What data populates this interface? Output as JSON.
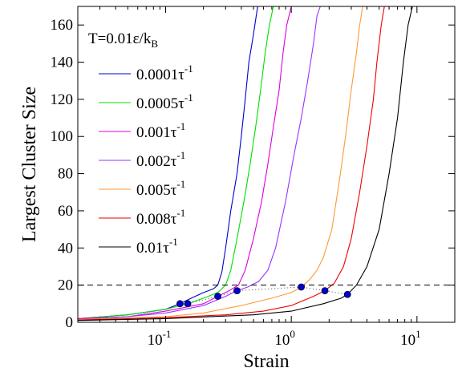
{
  "chart_data": {
    "type": "line",
    "xlabel": "Strain",
    "ylabel": "Largest Cluster Size",
    "xscale": "log",
    "xlim": [
      0.02,
      20
    ],
    "ylim": [
      0,
      170
    ],
    "x_ticks": [
      {
        "value": 0.1,
        "base": "10",
        "exp": "-1"
      },
      {
        "value": 1,
        "base": "10",
        "exp": "0"
      },
      {
        "value": 10,
        "base": "10",
        "exp": "1"
      }
    ],
    "y_ticks": [
      0,
      20,
      40,
      60,
      80,
      100,
      120,
      140,
      160
    ],
    "legend_title": {
      "main": "T=0.01ε/k",
      "sub": "B"
    },
    "legend_position": "top-left",
    "reference_line": {
      "y": 20,
      "style": "dashed"
    },
    "series": [
      {
        "name": "0.0001τ",
        "label_base": "0.0001τ",
        "label_exp": "-1",
        "color": "#0000cc",
        "points": [
          [
            0.02,
            2
          ],
          [
            0.05,
            4
          ],
          [
            0.1,
            7
          ],
          [
            0.13,
            10
          ],
          [
            0.16,
            13
          ],
          [
            0.2,
            16
          ],
          [
            0.24,
            18
          ],
          [
            0.26,
            20
          ],
          [
            0.28,
            27
          ],
          [
            0.3,
            40
          ],
          [
            0.33,
            60
          ],
          [
            0.37,
            80
          ],
          [
            0.4,
            100
          ],
          [
            0.43,
            120
          ],
          [
            0.46,
            140
          ],
          [
            0.5,
            155
          ],
          [
            0.54,
            170
          ]
        ],
        "marker": [
          0.13,
          10
        ]
      },
      {
        "name": "0.0005τ",
        "label_base": "0.0005τ",
        "label_exp": "-1",
        "color": "#00dd00",
        "points": [
          [
            0.02,
            2
          ],
          [
            0.05,
            4
          ],
          [
            0.1,
            7
          ],
          [
            0.15,
            10
          ],
          [
            0.2,
            13
          ],
          [
            0.26,
            16
          ],
          [
            0.3,
            20
          ],
          [
            0.33,
            28
          ],
          [
            0.37,
            45
          ],
          [
            0.42,
            65
          ],
          [
            0.47,
            85
          ],
          [
            0.52,
            105
          ],
          [
            0.57,
            125
          ],
          [
            0.62,
            145
          ],
          [
            0.67,
            160
          ],
          [
            0.72,
            170
          ]
        ],
        "marker": [
          0.15,
          10
        ]
      },
      {
        "name": "0.001τ",
        "label_base": "0.001τ",
        "label_exp": "-1",
        "color": "#dd00dd",
        "points": [
          [
            0.02,
            2
          ],
          [
            0.05,
            3
          ],
          [
            0.1,
            6
          ],
          [
            0.2,
            10
          ],
          [
            0.26,
            14
          ],
          [
            0.32,
            17
          ],
          [
            0.38,
            20
          ],
          [
            0.43,
            28
          ],
          [
            0.5,
            45
          ],
          [
            0.58,
            65
          ],
          [
            0.65,
            85
          ],
          [
            0.72,
            105
          ],
          [
            0.8,
            125
          ],
          [
            0.86,
            145
          ],
          [
            0.92,
            160
          ],
          [
            1.0,
            170
          ]
        ],
        "marker": [
          0.26,
          14
        ]
      },
      {
        "name": "0.002τ",
        "label_base": "0.002τ",
        "label_exp": "-1",
        "color": "#9933ff",
        "points": [
          [
            0.02,
            1.5
          ],
          [
            0.05,
            3
          ],
          [
            0.1,
            5
          ],
          [
            0.2,
            9
          ],
          [
            0.3,
            14
          ],
          [
            0.37,
            17
          ],
          [
            0.45,
            19
          ],
          [
            0.55,
            22
          ],
          [
            0.65,
            28
          ],
          [
            0.75,
            40
          ],
          [
            0.9,
            65
          ],
          [
            1.05,
            90
          ],
          [
            1.2,
            110
          ],
          [
            1.35,
            130
          ],
          [
            1.5,
            150
          ],
          [
            1.6,
            165
          ],
          [
            1.7,
            170
          ]
        ],
        "marker": [
          0.37,
          17
        ]
      },
      {
        "name": "0.005τ",
        "label_base": "0.005τ",
        "label_exp": "-1",
        "color": "#ff9933",
        "points": [
          [
            0.02,
            1.5
          ],
          [
            0.1,
            3
          ],
          [
            0.2,
            5
          ],
          [
            0.4,
            9
          ],
          [
            0.7,
            13
          ],
          [
            1.0,
            16
          ],
          [
            1.2,
            19
          ],
          [
            1.4,
            23
          ],
          [
            1.6,
            28
          ],
          [
            1.8,
            35
          ],
          [
            2.1,
            50
          ],
          [
            2.4,
            75
          ],
          [
            2.7,
            100
          ],
          [
            3.0,
            125
          ],
          [
            3.3,
            145
          ],
          [
            3.5,
            160
          ],
          [
            3.7,
            170
          ]
        ],
        "marker": [
          1.2,
          19
        ]
      },
      {
        "name": "0.008τ",
        "label_base": "0.008τ",
        "label_exp": "-1",
        "color": "#ee0000",
        "points": [
          [
            0.02,
            1.2
          ],
          [
            0.1,
            2.5
          ],
          [
            0.3,
            4
          ],
          [
            0.6,
            6
          ],
          [
            1.0,
            9
          ],
          [
            1.5,
            14
          ],
          [
            1.85,
            17
          ],
          [
            2.2,
            21
          ],
          [
            2.6,
            30
          ],
          [
            3.0,
            45
          ],
          [
            3.5,
            70
          ],
          [
            4.0,
            95
          ],
          [
            4.5,
            120
          ],
          [
            4.8,
            140
          ],
          [
            5.2,
            160
          ],
          [
            5.5,
            170
          ]
        ],
        "marker": [
          1.85,
          17
        ]
      },
      {
        "name": "0.01τ",
        "label_base": "0.01τ",
        "label_exp": "-1",
        "color": "#000000",
        "points": [
          [
            0.02,
            1
          ],
          [
            0.1,
            2
          ],
          [
            0.5,
            4
          ],
          [
            1.0,
            6
          ],
          [
            1.8,
            10
          ],
          [
            2.5,
            13
          ],
          [
            2.8,
            15
          ],
          [
            3.3,
            20
          ],
          [
            4.0,
            30
          ],
          [
            5.0,
            50
          ],
          [
            6.0,
            80
          ],
          [
            7.0,
            110
          ],
          [
            7.8,
            140
          ],
          [
            8.5,
            160
          ],
          [
            9.2,
            170
          ]
        ],
        "marker": [
          2.8,
          15
        ]
      }
    ]
  }
}
